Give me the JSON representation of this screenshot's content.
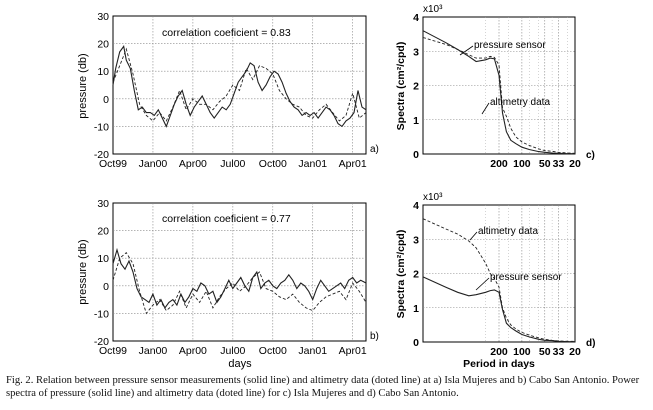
{
  "caption": "Fig. 2. Relation between pressure sensor measurements (solid line) and altimetry data (doted line) at a) Isla Mujeres and b) Cabo San Antonio. Power spectra of pressure (solid line) and altimetry data (doted line) for c) Isla Mujeres and d) Cabo San Antonio.",
  "chart_data": [
    {
      "panel": "a)",
      "type": "line",
      "ylabel": "pressure (db)",
      "xlabel": "",
      "annotation": "correlation coeficient = 0.83",
      "ylim": [
        -20,
        30
      ],
      "yticks": [
        -20,
        -10,
        0,
        10,
        20,
        30
      ],
      "xlim": [
        0,
        19
      ],
      "xticks": [
        {
          "x": 0,
          "label": "Oct99"
        },
        {
          "x": 3,
          "label": "Jan00"
        },
        {
          "x": 6,
          "label": "Apr00"
        },
        {
          "x": 9,
          "label": "Jul00"
        },
        {
          "x": 12,
          "label": "Oct00"
        },
        {
          "x": 15,
          "label": "Jan01"
        },
        {
          "x": 18,
          "label": "Apr01"
        }
      ],
      "grid": true,
      "series": [
        {
          "style": "solid",
          "x": [
            0,
            0.2,
            0.5,
            0.8,
            1.0,
            1.3,
            1.6,
            1.9,
            2.2,
            2.5,
            2.8,
            3.1,
            3.4,
            3.7,
            4.0,
            4.3,
            4.6,
            4.9,
            5.2,
            5.5,
            5.8,
            6.1,
            6.4,
            6.7,
            7.0,
            7.3,
            7.6,
            7.9,
            8.2,
            8.5,
            8.8,
            9.1,
            9.4,
            9.7,
            10.0,
            10.3,
            10.6,
            10.9,
            11.2,
            11.5,
            11.8,
            12.1,
            12.4,
            12.7,
            13.0,
            13.3,
            13.6,
            13.9,
            14.2,
            14.5,
            14.8,
            15.1,
            15.4,
            15.7,
            16.0,
            16.3,
            16.6,
            16.9,
            17.2,
            17.5,
            17.8,
            18.1,
            18.4,
            18.7,
            19.0
          ],
          "y": [
            5,
            11,
            17,
            19,
            14,
            11,
            3,
            -4,
            -3,
            -5,
            -5,
            -6,
            -4,
            -7,
            -10,
            -6,
            -2,
            1,
            3,
            -2,
            -6,
            -3,
            -1,
            1,
            -2,
            -5,
            -7,
            -5,
            -3,
            -4,
            -2,
            2,
            6,
            8,
            10,
            13,
            12,
            6,
            3,
            5,
            8,
            10,
            9,
            6,
            2,
            -1,
            -3,
            -4,
            -6,
            -5,
            -6,
            -5,
            -7,
            -5,
            -3,
            -4,
            -6,
            -9,
            -10,
            -8,
            -7,
            -5,
            3,
            -3,
            -4
          ]
        },
        {
          "style": "dashed",
          "x": [
            0,
            0.5,
            1.0,
            1.5,
            2.0,
            2.5,
            3.0,
            3.5,
            4.0,
            4.5,
            5.0,
            5.5,
            6.0,
            6.5,
            7.0,
            7.5,
            8.0,
            8.5,
            9.0,
            9.5,
            10.0,
            10.5,
            11.0,
            11.5,
            12.0,
            12.5,
            13.0,
            13.5,
            14.0,
            14.5,
            15.0,
            15.5,
            16.0,
            16.5,
            17.0,
            17.5,
            18.0,
            18.5,
            19.0
          ],
          "y": [
            6,
            12,
            18,
            9,
            -2,
            -6,
            -8,
            -5,
            -8,
            -3,
            3,
            -4,
            0,
            -2,
            -2,
            -4,
            -1,
            1,
            5,
            3,
            11,
            7,
            12,
            11,
            9,
            3,
            0,
            -2,
            -3,
            -6,
            -7,
            -4,
            -2,
            -5,
            -8,
            -6,
            2,
            -7,
            -5
          ]
        }
      ]
    },
    {
      "panel": "b)",
      "type": "line",
      "ylabel": "pressure (db)",
      "xlabel": "days",
      "annotation": "correlation coeficient = 0.77",
      "ylim": [
        -20,
        30
      ],
      "yticks": [
        -20,
        -10,
        0,
        10,
        20,
        30
      ],
      "xlim": [
        0,
        19
      ],
      "xticks": [
        {
          "x": 0,
          "label": "Oct99"
        },
        {
          "x": 3,
          "label": "Jan00"
        },
        {
          "x": 6,
          "label": "Apr00"
        },
        {
          "x": 9,
          "label": "Jul00"
        },
        {
          "x": 12,
          "label": "Oct00"
        },
        {
          "x": 15,
          "label": "Jan01"
        },
        {
          "x": 18,
          "label": "Apr01"
        }
      ],
      "grid": true,
      "series": [
        {
          "style": "solid",
          "x": [
            0,
            0.3,
            0.6,
            0.9,
            1.2,
            1.5,
            1.8,
            2.1,
            2.4,
            2.7,
            3.0,
            3.3,
            3.6,
            3.9,
            4.2,
            4.5,
            4.8,
            5.1,
            5.4,
            5.7,
            6.0,
            6.3,
            6.6,
            6.9,
            7.2,
            7.5,
            7.8,
            8.1,
            8.4,
            8.7,
            9.0,
            9.3,
            9.6,
            9.9,
            10.2,
            10.5,
            10.8,
            11.1,
            11.4,
            11.7,
            12.0,
            12.3,
            12.6,
            12.9,
            13.2,
            13.5,
            13.8,
            14.1,
            14.4,
            14.7,
            15.0,
            15.3,
            15.6,
            15.9,
            16.2,
            16.5,
            16.8,
            17.1,
            17.4,
            17.7,
            18.0,
            18.3,
            18.6,
            19.0
          ],
          "y": [
            8,
            13,
            8,
            6,
            9,
            5,
            -1,
            -4,
            -5,
            -6,
            -3,
            -7,
            -5,
            -8,
            -6,
            -5,
            -7,
            -3,
            -6,
            -4,
            -1,
            -2,
            1,
            0,
            -3,
            -2,
            -6,
            -4,
            -1,
            2,
            -1,
            1,
            3,
            0,
            -2,
            3,
            5,
            -1,
            1,
            2,
            0,
            -1,
            1,
            2,
            4,
            2,
            -1,
            1,
            0,
            -2,
            -5,
            -1,
            2,
            0,
            -2,
            -1,
            0,
            1,
            -1,
            2,
            3,
            1,
            2,
            1
          ]
        },
        {
          "style": "dashed",
          "x": [
            0,
            0.5,
            1.0,
            1.5,
            2.0,
            2.5,
            3.0,
            3.5,
            4.0,
            4.5,
            5.0,
            5.5,
            6.0,
            6.5,
            7.0,
            7.5,
            8.0,
            8.5,
            9.0,
            9.5,
            10.0,
            10.5,
            11.0,
            11.5,
            12.0,
            12.5,
            13.0,
            13.5,
            14.0,
            14.5,
            15.0,
            15.5,
            16.0,
            16.5,
            17.0,
            17.5,
            18.0,
            18.5,
            19.0
          ],
          "y": [
            2,
            10,
            12,
            8,
            -2,
            -10,
            -7,
            -5,
            -9,
            -7,
            -2,
            -8,
            -3,
            -6,
            -2,
            -8,
            -4,
            -1,
            1,
            -2,
            0,
            3,
            5,
            -1,
            -2,
            -4,
            -5,
            -3,
            -6,
            -8,
            -9,
            -6,
            -4,
            -3,
            -2,
            -5,
            1,
            -2,
            -6
          ]
        }
      ]
    },
    {
      "panel": "c)",
      "type": "line",
      "ylabel": "Spectra (cm²/cpd)",
      "xlabel": "",
      "exponent_label": "x10³",
      "ylim": [
        0,
        4
      ],
      "yticks": [
        0,
        1,
        2,
        3,
        4
      ],
      "xticks": [
        200,
        100,
        50,
        33,
        20
      ],
      "xscale": "log (frequency)",
      "grid": true,
      "annotations": [
        "pressure sensor",
        "altimetry data"
      ],
      "series": [
        {
          "style": "solid",
          "x": [
            2000,
            1000,
            700,
            500,
            400,
            300,
            260,
            230,
            200,
            180,
            160,
            140,
            120,
            100,
            80,
            60,
            50,
            40,
            33,
            25,
            20
          ],
          "y": [
            3.6,
            3.25,
            3.05,
            2.85,
            2.7,
            2.75,
            2.8,
            2.78,
            2.3,
            1.2,
            0.65,
            0.4,
            0.3,
            0.2,
            0.13,
            0.07,
            0.05,
            0.03,
            0.02,
            0.01,
            0.01
          ]
        },
        {
          "style": "dashed",
          "x": [
            2000,
            1000,
            700,
            500,
            400,
            300,
            260,
            230,
            200,
            180,
            160,
            140,
            120,
            100,
            80,
            60,
            50,
            40,
            33,
            25,
            20
          ],
          "y": [
            3.4,
            3.2,
            3.05,
            2.9,
            2.8,
            2.8,
            2.85,
            2.82,
            2.6,
            1.35,
            1.1,
            0.75,
            0.5,
            0.35,
            0.25,
            0.15,
            0.1,
            0.08,
            0.05,
            0.03,
            0.02
          ]
        }
      ]
    },
    {
      "panel": "d)",
      "type": "line",
      "ylabel": "Spectra (cm²/cpd)",
      "xlabel": "Period in days",
      "exponent_label": "x10³",
      "ylim": [
        0,
        4
      ],
      "yticks": [
        0,
        1,
        2,
        3,
        4
      ],
      "xticks": [
        200,
        100,
        50,
        33,
        20
      ],
      "xscale": "log (frequency)",
      "grid": true,
      "annotations": [
        "altimetry data",
        "pressure sensor"
      ],
      "series": [
        {
          "style": "solid",
          "x": [
            2000,
            1000,
            700,
            500,
            400,
            300,
            260,
            230,
            200,
            180,
            160,
            140,
            120,
            100,
            80,
            60,
            50,
            40,
            33,
            25,
            20
          ],
          "y": [
            1.9,
            1.6,
            1.45,
            1.35,
            1.38,
            1.45,
            1.5,
            1.52,
            1.45,
            0.95,
            0.55,
            0.42,
            0.32,
            0.22,
            0.15,
            0.08,
            0.05,
            0.04,
            0.02,
            0.01,
            0.01
          ]
        },
        {
          "style": "dashed",
          "x": [
            2000,
            1000,
            700,
            500,
            400,
            300,
            260,
            230,
            200,
            180,
            160,
            140,
            120,
            100,
            80,
            60,
            50,
            40,
            33,
            25,
            20
          ],
          "y": [
            3.6,
            3.3,
            3.15,
            2.95,
            2.75,
            2.3,
            2.0,
            1.85,
            1.6,
            1.0,
            0.7,
            0.5,
            0.38,
            0.28,
            0.2,
            0.12,
            0.08,
            0.05,
            0.03,
            0.02,
            0.02
          ]
        }
      ]
    }
  ]
}
